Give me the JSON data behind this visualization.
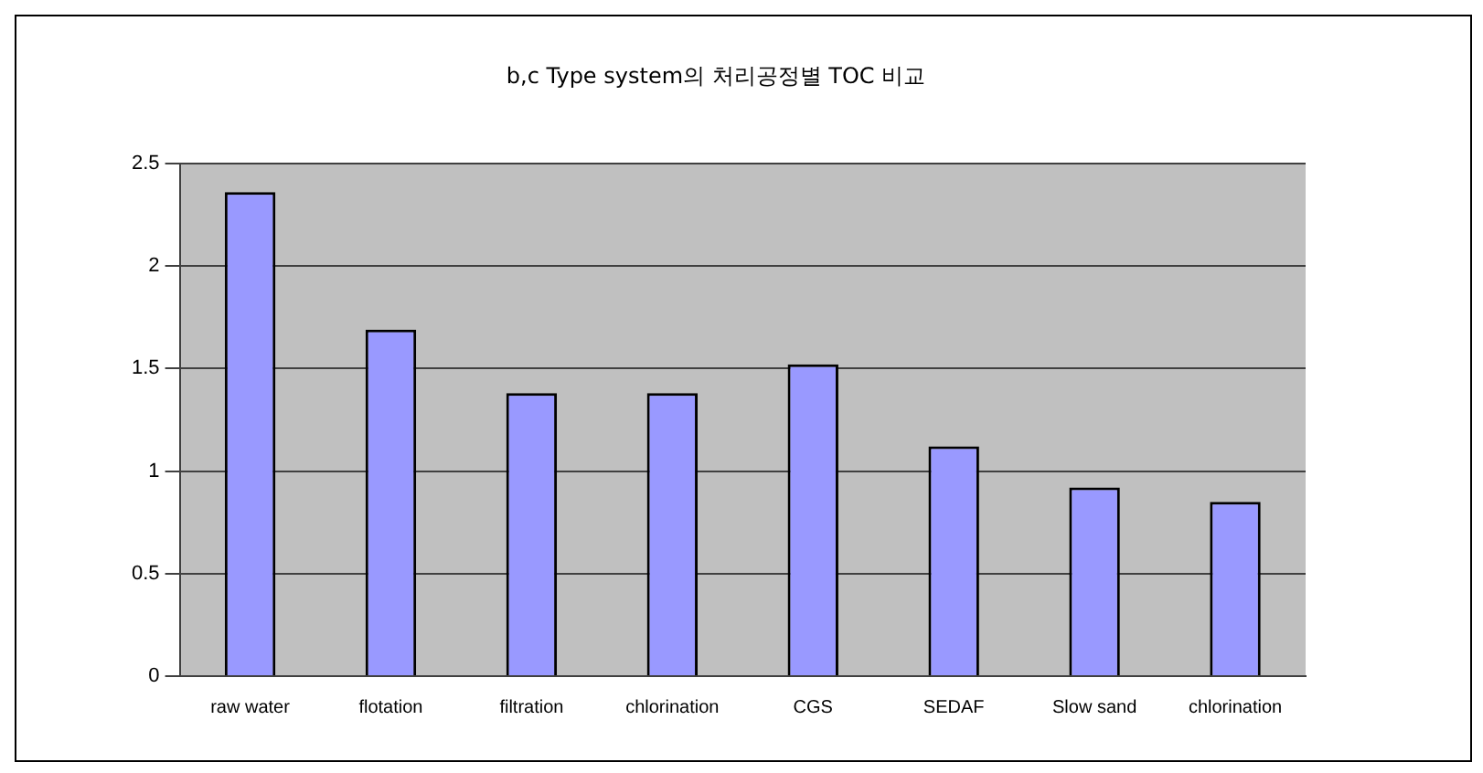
{
  "chart_data": {
    "type": "bar",
    "title": "b,c Type system의 처리공정별 TOC 비교",
    "categories": [
      "raw water",
      "flotation",
      "filtration",
      "chlorination",
      "CGS",
      "SEDAF",
      "Slow sand",
      "chlorination"
    ],
    "values": [
      2.36,
      1.69,
      1.38,
      1.38,
      1.52,
      1.12,
      0.92,
      0.85
    ],
    "color": "#9999ff",
    "ylim": [
      0,
      2.5
    ],
    "yticks": [
      0,
      0.5,
      1,
      1.5,
      2,
      2.5
    ],
    "grid": "y",
    "legend": false
  }
}
